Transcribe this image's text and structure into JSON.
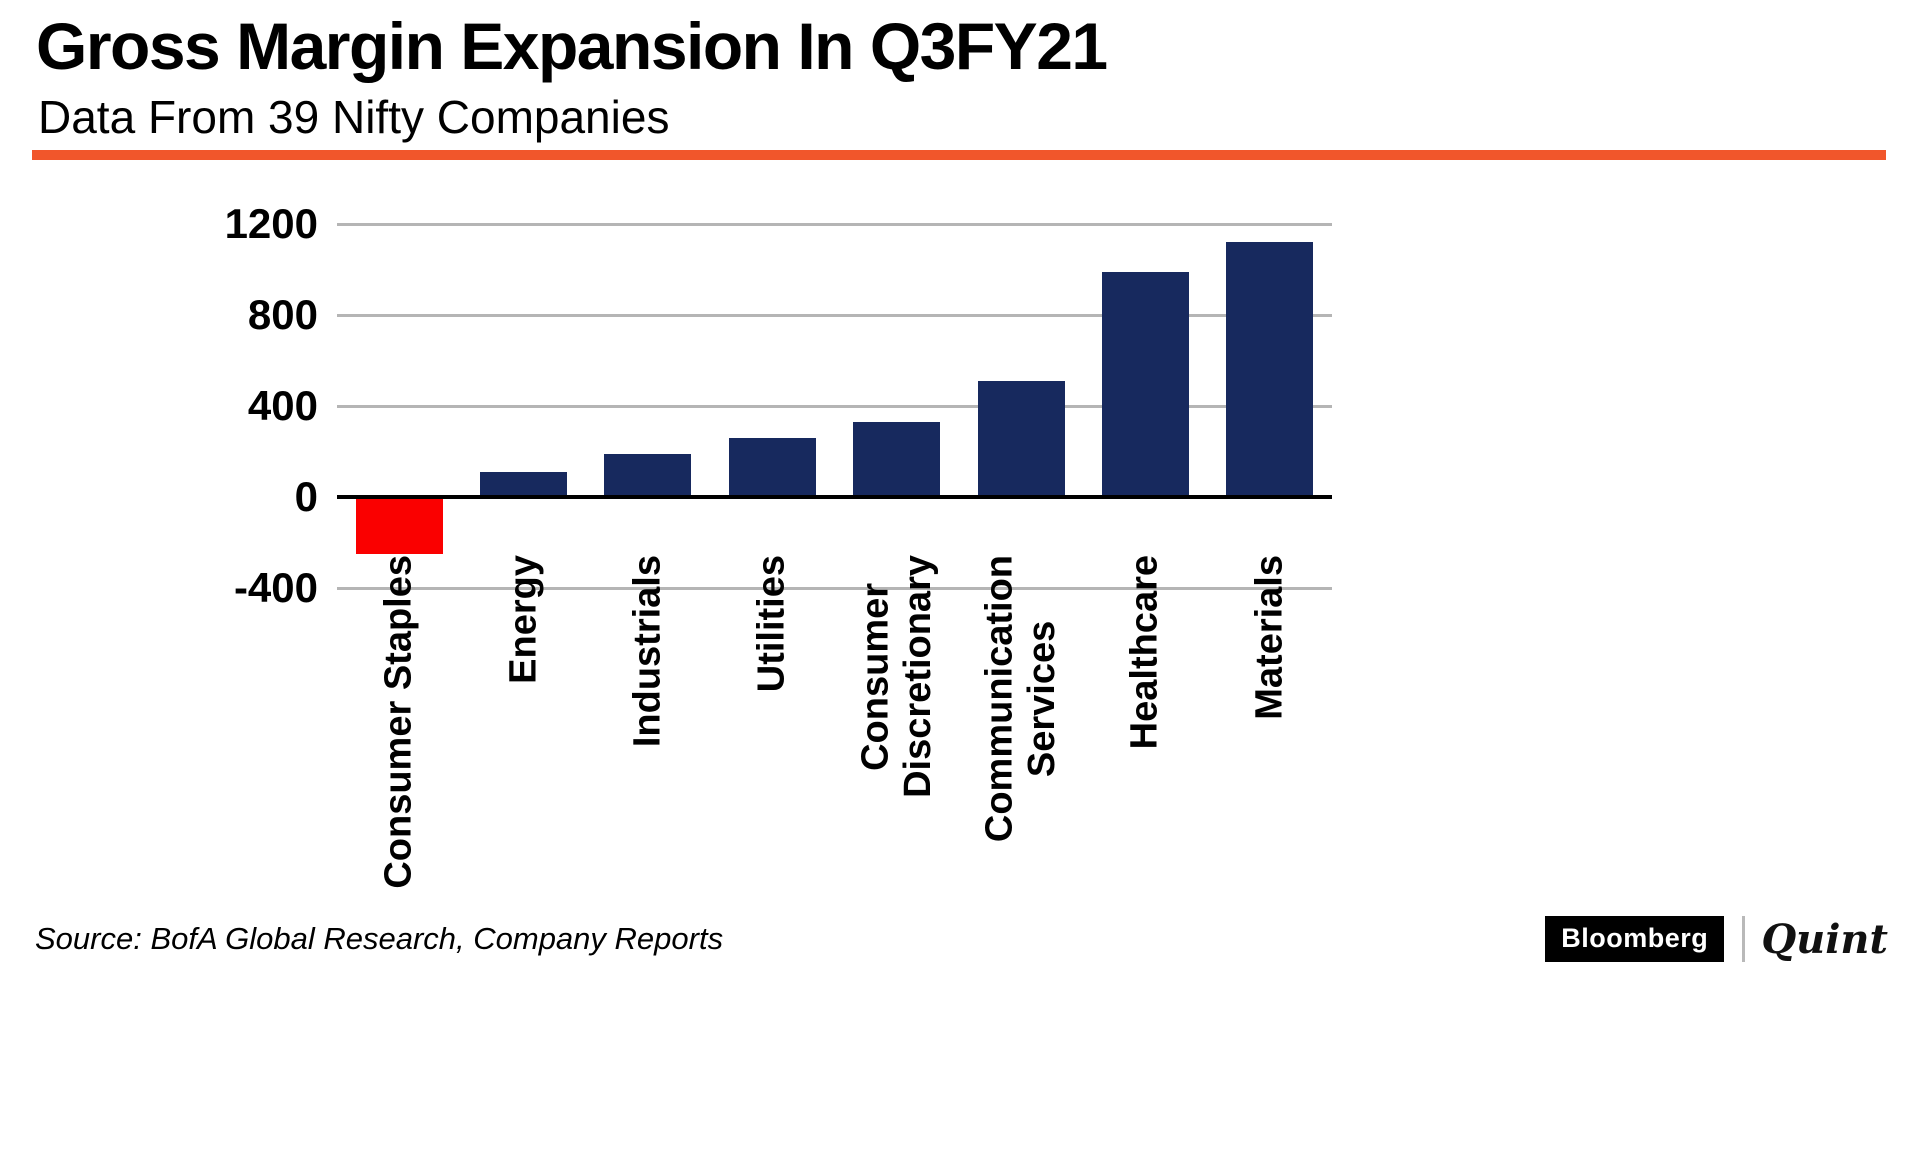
{
  "header": {
    "title": "Gross Margin Expansion In Q3FY21",
    "subtitle": "Data From 39 Nifty Companies"
  },
  "chart_data": {
    "type": "bar",
    "title": "Gross Margin Expansion In Q3FY21",
    "subtitle": "Data From 39 Nifty Companies",
    "categories": [
      "Consumer Staples",
      "Energy",
      "Industrials",
      "Utilities",
      "Consumer Discretionary",
      "Communication Services",
      "Healthcare",
      "Materials"
    ],
    "category_display": [
      "Consumer Staples",
      "Energy",
      "Industrials",
      "Utilities",
      "Consumer\nDiscretionary",
      "Communication\nServices",
      "Healthcare",
      "Materials"
    ],
    "values": [
      -250,
      110,
      190,
      260,
      330,
      510,
      990,
      1120
    ],
    "ylim": [
      -400,
      1200
    ],
    "yticks": [
      1200,
      800,
      400,
      0,
      -400
    ],
    "grid": true,
    "legend": "none",
    "xlabel": "",
    "ylabel": "",
    "bar_color_positive": "#17295e",
    "bar_color_negative": "#fa0000"
  },
  "footer": {
    "source": "Source: BofA Global Research, Company Reports",
    "logo_primary": "Bloomberg",
    "logo_secondary": "Quint"
  },
  "colors": {
    "accent_rule": "#f1562b",
    "grid": "#b5b5b5",
    "axis": "#000000",
    "background": "#ffffff"
  }
}
